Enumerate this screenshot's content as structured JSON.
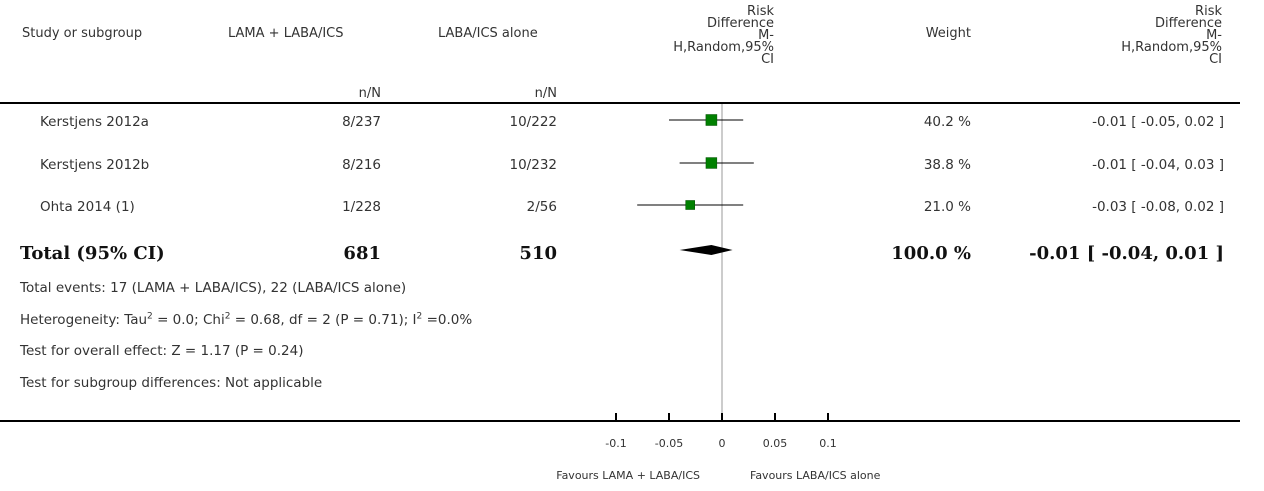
{
  "header": {
    "study": "Study or subgroup",
    "group1": "LAMA + LABA/ICS",
    "group2": "LABA/ICS alone",
    "nN1": "n/N",
    "nN2": "n/N",
    "effect_lines": [
      "Risk",
      "Difference",
      "M-",
      "H,Random,95%",
      "CI"
    ],
    "weight": "Weight",
    "effect2_lines": [
      "Risk",
      "Difference",
      "M-",
      "H,Random,95%",
      "CI"
    ]
  },
  "rows": [
    {
      "study": "Kerstjens 2012a",
      "g1": "8/237",
      "g2": "10/222",
      "weight": "40.2 %",
      "ci_text": "-0.01 [ -0.05, 0.02 ]"
    },
    {
      "study": "Kerstjens 2012b",
      "g1": "8/216",
      "g2": "10/232",
      "weight": "38.8 %",
      "ci_text": "-0.01 [ -0.04, 0.03 ]"
    },
    {
      "study": "Ohta 2014 (1)",
      "g1": "1/228",
      "g2": "2/56",
      "weight": "21.0 %",
      "ci_text": "-0.03 [ -0.08, 0.02 ]"
    }
  ],
  "total": {
    "label": "Total (95% CI)",
    "g1": "681",
    "g2": "510",
    "weight": "100.0 %",
    "ci_text": "-0.01 [ -0.04, 0.01 ]"
  },
  "notes": {
    "events": "Total events: 17 (LAMA + LABA/ICS), 22 (LABA/ICS alone)",
    "heterogeneity_a": "Heterogeneity: Tau",
    "heterogeneity_b": " = 0.0; Chi",
    "heterogeneity_c": " = 0.68, df = 2 (P = 0.71); I",
    "heterogeneity_d": " =0.0%",
    "sup": "2",
    "overall": "Test for overall effect: Z = 1.17 (P = 0.24)",
    "subgroup": "Test for subgroup differences: Not applicable"
  },
  "axis": {
    "favours_left": "Favours LAMA + LABA/ICS",
    "favours_right": "Favours LABA/ICS alone"
  },
  "colors": {
    "marker": "#008000",
    "diamond": "#000000"
  },
  "chart_data": {
    "type": "forest",
    "xlim": [
      -0.1,
      0.1
    ],
    "ticks": [
      -0.1,
      -0.05,
      0,
      0.05,
      0.1
    ],
    "tick_labels": [
      "-0.1",
      "-0.05",
      "0",
      "0.05",
      "0.1"
    ],
    "studies": [
      {
        "name": "Kerstjens 2012a",
        "estimate": -0.01,
        "lower": -0.05,
        "upper": 0.02,
        "weight": 40.2
      },
      {
        "name": "Kerstjens 2012b",
        "estimate": -0.01,
        "lower": -0.04,
        "upper": 0.03,
        "weight": 38.8
      },
      {
        "name": "Ohta 2014 (1)",
        "estimate": -0.03,
        "lower": -0.08,
        "upper": 0.02,
        "weight": 21.0
      }
    ],
    "pooled": {
      "estimate": -0.01,
      "lower": -0.04,
      "upper": 0.01
    }
  }
}
